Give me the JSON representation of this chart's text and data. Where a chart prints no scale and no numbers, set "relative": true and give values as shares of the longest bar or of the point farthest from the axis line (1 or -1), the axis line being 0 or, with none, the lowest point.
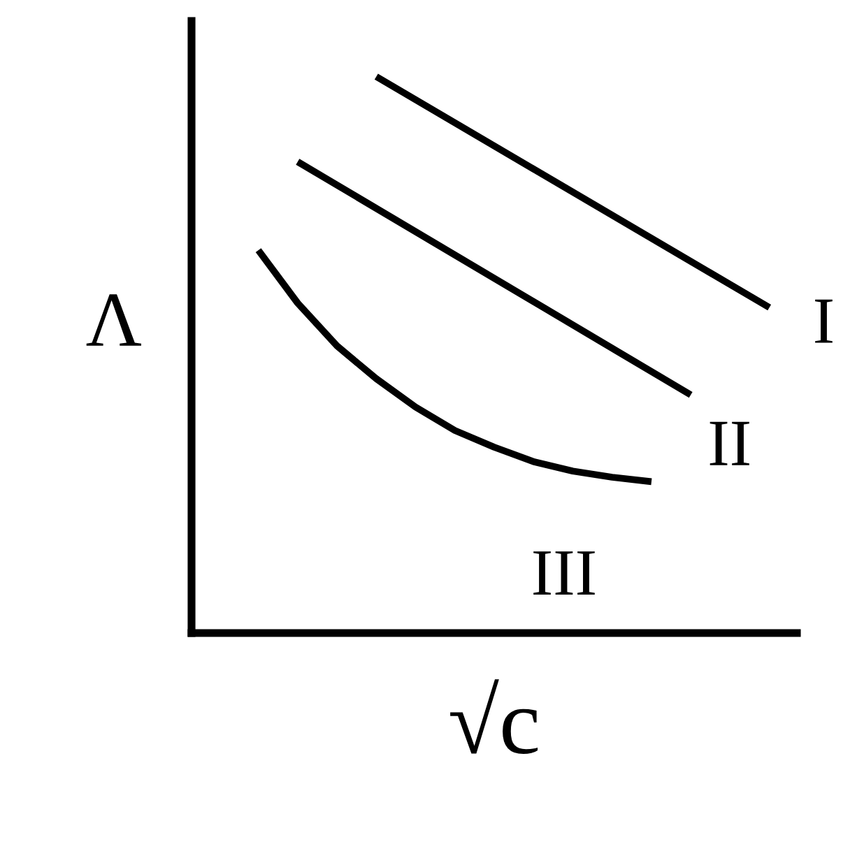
{
  "chart_data": {
    "type": "line",
    "relative": true,
    "xlabel": "√c",
    "ylabel": "Λ",
    "legend": false,
    "marker": "none",
    "line_style": "solid",
    "categories": [
      null,
      null,
      null,
      null,
      null,
      null,
      null,
      null,
      null,
      null,
      null,
      null,
      null,
      null
    ],
    "series": [
      {
        "name": "I",
        "color": "#000000",
        "values": [
          null,
          null,
          null,
          1,
          null,
          null,
          null,
          null,
          null,
          null,
          null,
          null,
          null,
          0.585
        ]
      },
      {
        "name": "II",
        "color": "#000000",
        "values": [
          null,
          0.847,
          null,
          null,
          null,
          null,
          null,
          null,
          null,
          null,
          null,
          0.428,
          null,
          null
        ]
      },
      {
        "name": "III",
        "color": "#000000",
        "values": [
          0.688,
          0.593,
          0.516,
          0.457,
          0.406,
          0.364,
          0.334,
          0.308,
          0.291,
          0.28,
          0.272,
          null,
          null,
          null
        ]
      }
    ]
  }
}
